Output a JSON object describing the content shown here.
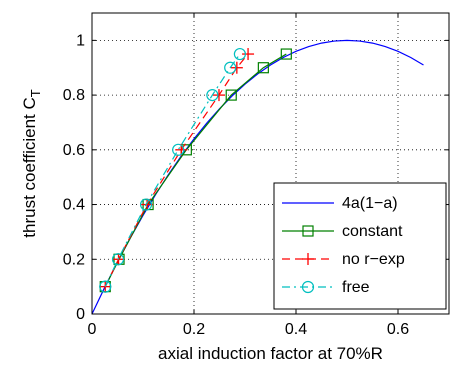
{
  "chart_data": {
    "type": "line",
    "xlabel": "axial induction factor at 70%R",
    "ylabel": "thrust coefficient C",
    "ylabel_subscript": "T",
    "xlim": [
      0,
      0.7
    ],
    "ylim": [
      0,
      1.1
    ],
    "xticks": [
      0,
      0.2,
      0.4,
      0.6
    ],
    "xtick_labels": [
      "0",
      "0.2",
      "0.4",
      "0.6"
    ],
    "yticks": [
      0,
      0.2,
      0.4,
      0.6,
      0.8,
      1
    ],
    "ytick_labels": [
      "0",
      "0.2",
      "0.4",
      "0.6",
      "0.8",
      "1"
    ],
    "grid": true,
    "legend_position": "bottom-right",
    "series": [
      {
        "name": "4a(1−a)",
        "color": "#0000ff",
        "line": "solid",
        "marker": "none",
        "x": [
          0,
          0.025,
          0.05,
          0.075,
          0.1,
          0.125,
          0.15,
          0.175,
          0.2,
          0.225,
          0.25,
          0.275,
          0.3,
          0.325,
          0.35,
          0.375,
          0.4,
          0.425,
          0.45,
          0.475,
          0.5,
          0.525,
          0.55,
          0.575,
          0.6,
          0.625,
          0.65
        ],
        "y": [
          0,
          0.0975,
          0.19,
          0.2775,
          0.36,
          0.4375,
          0.51,
          0.5775,
          0.64,
          0.6975,
          0.75,
          0.7975,
          0.84,
          0.8775,
          0.91,
          0.9375,
          0.96,
          0.9775,
          0.99,
          0.9975,
          1.0,
          0.9975,
          0.99,
          0.9775,
          0.96,
          0.9375,
          0.91
        ]
      },
      {
        "name": "constant",
        "color": "#008000",
        "line": "solid",
        "marker": "square",
        "x": [
          0.026,
          0.053,
          0.11,
          0.185,
          0.273,
          0.336,
          0.381
        ],
        "y": [
          0.1,
          0.2,
          0.4,
          0.6,
          0.8,
          0.9,
          0.95
        ]
      },
      {
        "name": "no r−exp",
        "color": "#ff0000",
        "line": "dashed",
        "marker": "plus",
        "x": [
          0.026,
          0.052,
          0.108,
          0.175,
          0.249,
          0.284,
          0.306
        ],
        "y": [
          0.1,
          0.2,
          0.4,
          0.6,
          0.8,
          0.9,
          0.95
        ]
      },
      {
        "name": "free",
        "color": "#00bfbf",
        "line": "dashdot",
        "marker": "circle",
        "x": [
          0.026,
          0.051,
          0.106,
          0.169,
          0.236,
          0.271,
          0.29
        ],
        "y": [
          0.1,
          0.2,
          0.4,
          0.6,
          0.8,
          0.9,
          0.95
        ]
      }
    ]
  }
}
